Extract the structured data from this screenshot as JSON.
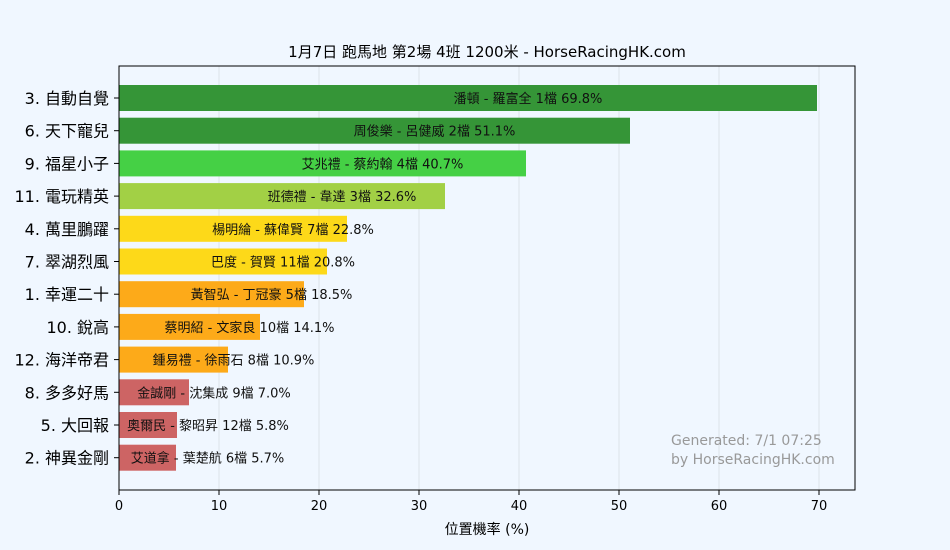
{
  "chart_data": {
    "type": "bar",
    "orientation": "horizontal",
    "title": "1月7日  跑馬地  第2場  4班  1200米 - HorseRacingHK.com",
    "xlabel": "位置機率 (%)",
    "ylabel": "",
    "xlim": [
      0,
      73.6
    ],
    "xticks": [
      0,
      10,
      20,
      30,
      40,
      50,
      60,
      70
    ],
    "grid": true,
    "categories": [
      "3. 自動自覺",
      "6. 天下寵兒",
      "9. 福星小子",
      "11. 電玩精英",
      "4. 萬里鵬躍",
      "7. 翠湖烈風",
      "1. 幸運二十",
      "10. 銳高",
      "12. 海洋帝君",
      "8. 多多好馬",
      "5. 大回報",
      "2. 神異金剛"
    ],
    "values": [
      69.8,
      51.1,
      40.7,
      32.6,
      22.8,
      20.8,
      18.5,
      14.1,
      10.9,
      7.0,
      5.8,
      5.7
    ],
    "bar_labels": [
      "潘頓 - 羅富全 1檔  69.8%",
      "周俊樂 - 呂健威 2檔  51.1%",
      "艾兆禮 - 蔡約翰 4檔  40.7%",
      "班德禮 - 韋達 3檔  32.6%",
      "楊明綸 - 蘇偉賢 7檔  22.8%",
      "巴度 - 賀賢 11檔  20.8%",
      "黃智弘 - 丁冠豪 5檔  18.5%",
      "蔡明紹 - 文家良 10檔  14.1%",
      "鍾易禮 - 徐雨石 8檔  10.9%",
      "金誠剛 - 沈集成 9檔  7.0%",
      "奧爾民 - 黎昭昇 12檔  5.8%",
      "艾道拿 - 葉楚航 6檔  5.7%"
    ],
    "colors": [
      "#359537",
      "#359537",
      "#45d045",
      "#a2d045",
      "#fdd919",
      "#fdd919",
      "#fdaa19",
      "#fdaa19",
      "#fdaa19",
      "#cd6464",
      "#cd6464",
      "#cd6464"
    ],
    "annotations": [
      "Generated: 7/1 07:25",
      "by HorseRacingHK.com"
    ]
  }
}
